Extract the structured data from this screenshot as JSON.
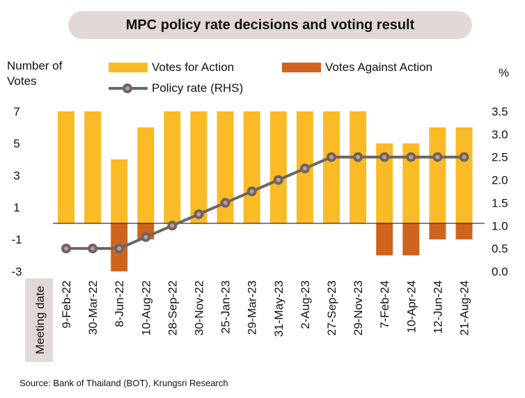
{
  "title": "MPC policy rate decisions and voting result",
  "source": "Source: Bank of Thailand (BOT), Krungsri Research",
  "left_axis_label": [
    "Number of",
    "Votes"
  ],
  "right_axis_label": "%",
  "x_axis_label": "Meeting date",
  "legend": {
    "for": "Votes for Action",
    "against": "Votes Against Action",
    "rate": "Policy rate (RHS)"
  },
  "colors": {
    "for": "#fbbb26",
    "against": "#cf641f",
    "rate_line": "#6d6463",
    "rate_marker_inner": "#c79a94",
    "x_label_bg": "#e2d9d7"
  },
  "chart_data": {
    "type": "bar",
    "categories": [
      "9-Feb-22",
      "30-Mar-22",
      "8-Jun-22",
      "10-Aug-22",
      "28-Sep-22",
      "30-Nov-22",
      "25-Jan-23",
      "29-Mar-23",
      "31-May-23",
      "2-Aug-23",
      "27-Sep-23",
      "29-Nov-23",
      "7-Feb-24",
      "10-Apr-24",
      "12-Jun-24",
      "21-Aug-24"
    ],
    "series": [
      {
        "name": "Votes for Action",
        "axis": "left",
        "values": [
          7,
          7,
          4,
          6,
          7,
          7,
          7,
          7,
          7,
          7,
          7,
          7,
          5,
          5,
          6,
          6
        ]
      },
      {
        "name": "Votes Against Action",
        "axis": "left",
        "values": [
          0,
          0,
          -3,
          -1,
          0,
          0,
          0,
          0,
          0,
          0,
          0,
          0,
          -2,
          -2,
          -1,
          -1
        ]
      },
      {
        "name": "Policy rate (RHS)",
        "axis": "right",
        "type": "line",
        "values": [
          0.5,
          0.5,
          0.5,
          0.75,
          1.0,
          1.25,
          1.5,
          1.75,
          2.0,
          2.25,
          2.5,
          2.5,
          2.5,
          2.5,
          2.5,
          2.5
        ]
      }
    ],
    "left_axis": {
      "ticks": [
        "7",
        "5",
        "3",
        "1",
        "-1",
        "-3"
      ],
      "range": [
        -3,
        7
      ]
    },
    "right_axis": {
      "ticks": [
        "3.5",
        "3.0",
        "2.5",
        "2.0",
        "1.5",
        "1.0",
        "0.5",
        "0.0"
      ],
      "range": [
        0.0,
        3.5
      ]
    }
  }
}
